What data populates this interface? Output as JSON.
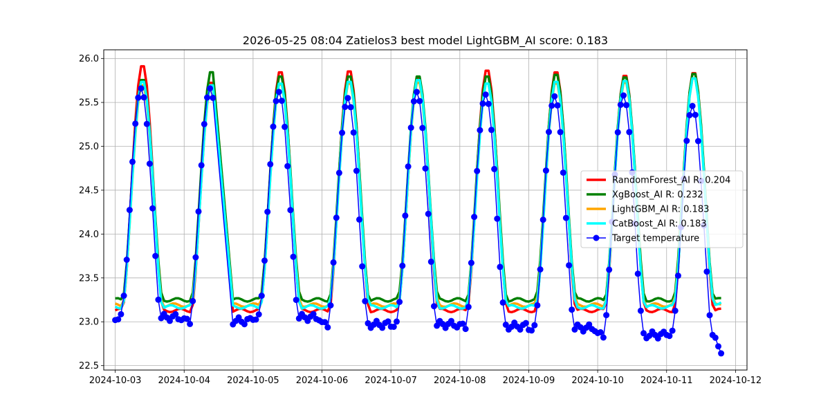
{
  "chart_data": {
    "type": "line",
    "title": "2026-05-25 08:04 Zatielos3 best model LightGBM_AI score: 0.183",
    "xlabel": "",
    "ylabel": "",
    "x_range": [
      "2024-10-02T20:00",
      "2024-10-12T04:00"
    ],
    "ylim": [
      22.45,
      26.1
    ],
    "x_ticks": [
      "2024-10-03",
      "2024-10-04",
      "2024-10-05",
      "2024-10-06",
      "2024-10-07",
      "2024-10-08",
      "2024-10-09",
      "2024-10-10",
      "2024-10-11",
      "2024-10-12"
    ],
    "y_ticks": [
      22.5,
      23.0,
      23.5,
      24.0,
      24.5,
      25.0,
      25.5,
      26.0
    ],
    "grid": true,
    "legend_position": "center-right",
    "series": [
      {
        "name": "RandomForest_AI R: 0.204",
        "color": "#ff0000",
        "width": 3.5,
        "marker": false,
        "base": 23.13,
        "peaks": [
          25.94,
          25.75,
          25.87,
          25.88,
          25.8,
          25.89,
          25.87,
          25.83,
          25.86
        ],
        "end": 23.15
      },
      {
        "name": "XgBoost_AI R: 0.232",
        "color": "#008000",
        "width": 3.5,
        "marker": false,
        "base": 23.25,
        "peaks": [
          25.78,
          25.87,
          25.82,
          25.82,
          25.82,
          25.82,
          25.84,
          25.81,
          25.85
        ],
        "end": 23.27
      },
      {
        "name": "LightGBM_AI R: 0.183",
        "color": "#ffa500",
        "width": 3.5,
        "marker": false,
        "base": 23.19,
        "peaks": [
          25.72,
          25.7,
          25.73,
          25.74,
          25.75,
          25.74,
          25.74,
          25.75,
          25.8
        ],
        "end": 23.2
      },
      {
        "name": "CatBoost_AI R: 0.183",
        "color": "#00ffff",
        "width": 3.5,
        "marker": false,
        "base": 23.17,
        "peaks": [
          25.76,
          25.72,
          25.74,
          25.76,
          25.78,
          25.74,
          25.76,
          25.77,
          25.8
        ],
        "end": 23.22
      },
      {
        "name": "Target temperature",
        "color": "#0000ff",
        "width": 1.5,
        "marker": true,
        "base": 23.05,
        "peaks": [
          25.66,
          25.66,
          25.62,
          25.55,
          25.62,
          25.59,
          25.57,
          25.58,
          25.46
        ],
        "end": 22.64
      }
    ]
  }
}
